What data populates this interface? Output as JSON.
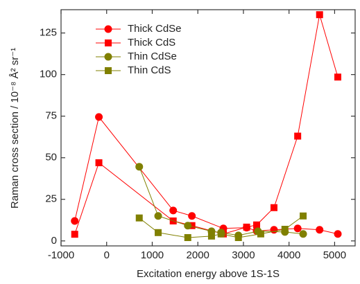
{
  "chart_data": {
    "type": "line",
    "x_label": "Excitation energy above 1S-1S",
    "y_label": "Raman cross section / 10⁻⁸ Å² sr⁻¹",
    "xlim": [
      -1000,
      5450
    ],
    "xticks": [
      -1000,
      0,
      1000,
      2000,
      3000,
      4000,
      5000
    ],
    "ylim": [
      -3,
      139
    ],
    "yticks": [
      0,
      25,
      50,
      75,
      100,
      125
    ],
    "legend": "upper left",
    "series": [
      {
        "name": "Thick CdSe",
        "color": "#ff0000",
        "marker": "circle",
        "x": [
          -700,
          -170,
          1460,
          1870,
          2560,
          3070,
          3290,
          3670,
          4190,
          4670,
          5070
        ],
        "values": [
          12,
          74.5,
          18.3,
          15,
          7.5,
          8,
          6,
          6.7,
          7.5,
          6.7,
          4.2
        ]
      },
      {
        "name": "Thick CdS",
        "color": "#ff0000",
        "marker": "square",
        "x": [
          -700,
          -170,
          1460,
          1870,
          2560,
          3070,
          3290,
          3670,
          4190,
          4670,
          5070
        ],
        "values": [
          4,
          47,
          12,
          9.2,
          4.2,
          8.3,
          9.6,
          20,
          63,
          136,
          98.5
        ]
      },
      {
        "name": "Thin CdSe",
        "color": "#808000",
        "marker": "circle",
        "x": [
          715,
          1130,
          1780,
          2300,
          2510,
          2890,
          3320,
          3910,
          4310
        ],
        "values": [
          44.6,
          15,
          9.2,
          5.8,
          5,
          3.3,
          5.8,
          5.4,
          4.2
        ]
      },
      {
        "name": "Thin CdS",
        "color": "#808000",
        "marker": "square",
        "x": [
          715,
          1130,
          1780,
          2300,
          2510,
          2890,
          3380,
          3910,
          4310
        ],
        "values": [
          13.8,
          5,
          2,
          2.9,
          4.2,
          2,
          4.2,
          7,
          15
        ]
      }
    ]
  }
}
